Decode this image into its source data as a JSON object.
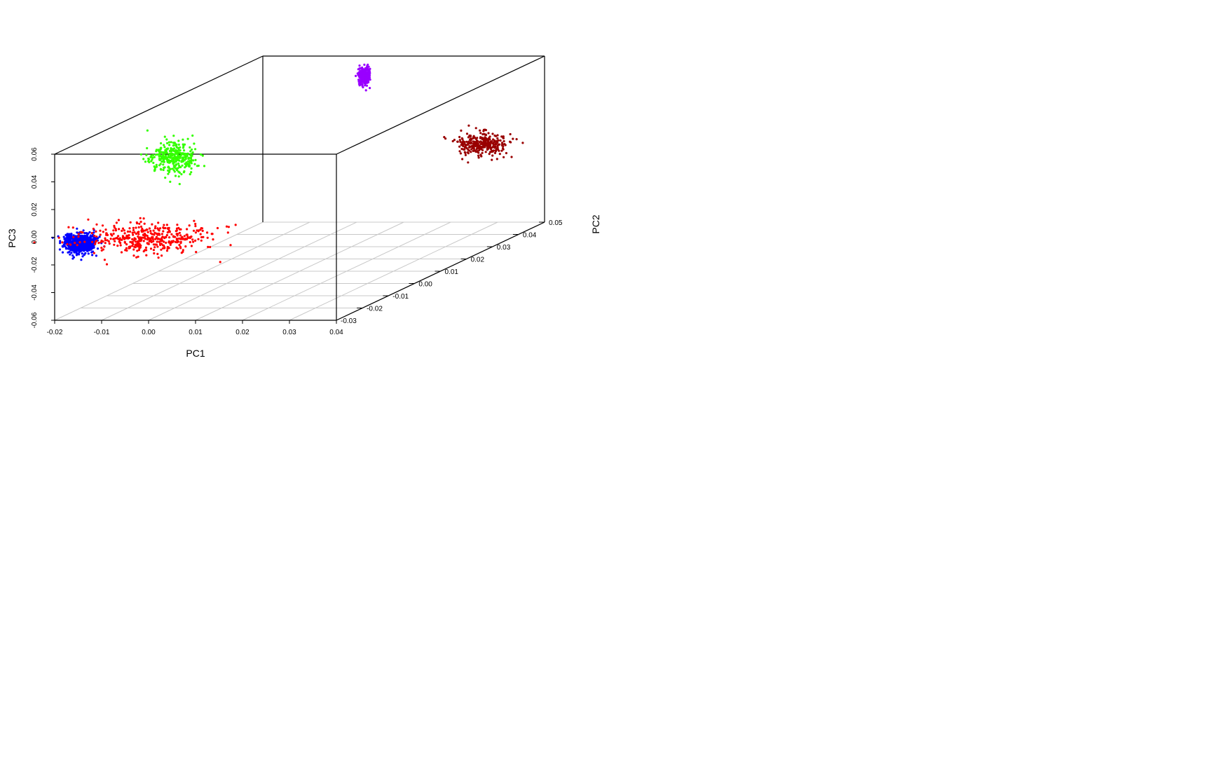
{
  "chart_data": {
    "type": "scatter",
    "projection": "3d",
    "title": "",
    "xlabel": "PC1",
    "ylabel": "PC2",
    "zlabel": "PC3",
    "xlim": [
      -0.02,
      0.04
    ],
    "ylim": [
      -0.03,
      0.05
    ],
    "zlim": [
      -0.06,
      0.06
    ],
    "x_ticks": [
      "-0.02",
      "-0.01",
      "0.00",
      "0.01",
      "0.02",
      "0.03",
      "0.04"
    ],
    "y_ticks": [
      "-0.03",
      "-0.02",
      "-0.01",
      "0.00",
      "0.01",
      "0.02",
      "0.03",
      "0.04",
      "0.05"
    ],
    "z_ticks": [
      "-0.06",
      "-0.04",
      "-0.02",
      "0.00",
      "0.02",
      "0.04",
      "0.06"
    ],
    "grid": "xy floor",
    "legend": "none",
    "clusters": [
      {
        "color": "#0000ff",
        "points": 700,
        "center": [
          -0.0159,
          -0.0276,
          -0.0068
        ],
        "spread": [
          0.0016,
          0.0005,
          0.0034
        ]
      },
      {
        "color": "#ff0000",
        "points": 420,
        "center": [
          -0.0015,
          -0.0272,
          -0.0036
        ],
        "spread": [
          0.0065,
          0.0006,
          0.0055
        ]
      },
      {
        "color": "#33ff00",
        "points": 350,
        "center": [
          0.0029,
          -0.0256,
          0.0538
        ],
        "spread": [
          0.0024,
          0.0005,
          0.0057
        ]
      },
      {
        "color": "#9900ff",
        "points": 250,
        "center": [
          0.0028,
          0.0478,
          0.0476
        ],
        "spread": [
          0.0006,
          0.0004,
          0.0035
        ]
      },
      {
        "color": "#990000",
        "points": 320,
        "center": [
          0.0415,
          0.0235,
          0.0195
        ],
        "spread": [
          0.0028,
          0.0004,
          0.0042
        ]
      }
    ]
  }
}
